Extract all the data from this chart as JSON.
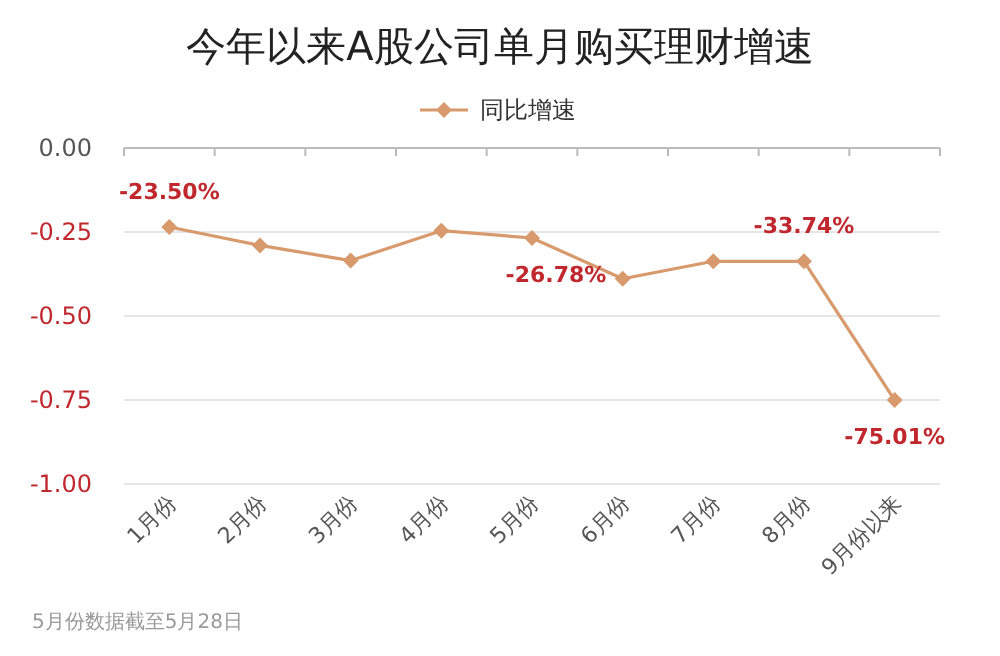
{
  "chart_data": {
    "type": "line",
    "title": "今年以来A股公司单月购买理财增速",
    "categories": [
      "1月份",
      "2月份",
      "3月份",
      "4月份",
      "5月份",
      "6月份",
      "7月份",
      "8月份",
      "9月份以来"
    ],
    "series": [
      {
        "name": "同比增速",
        "color": "#d8996c",
        "values": [
          -0.235,
          -0.29,
          -0.335,
          -0.246,
          -0.2678,
          -0.389,
          -0.337,
          -0.3374,
          -0.7501
        ],
        "value_labels": [
          "-23.50%",
          null,
          null,
          null,
          "-26.78%",
          null,
          null,
          "-33.74%",
          "-75.01%"
        ]
      }
    ],
    "ylim": [
      -1,
      0
    ],
    "yticks": [
      {
        "value": 0,
        "label": "0.00"
      },
      {
        "value": -0.25,
        "label": "-0.25"
      },
      {
        "value": -0.5,
        "label": "-0.50"
      },
      {
        "value": -0.75,
        "label": "-0.75"
      },
      {
        "value": -1,
        "label": "-1.00"
      }
    ],
    "grid": "y",
    "legend": "top",
    "marker": "diamond",
    "line_style": "solid",
    "annotations": [
      "5月份数据截至5月28日"
    ]
  }
}
